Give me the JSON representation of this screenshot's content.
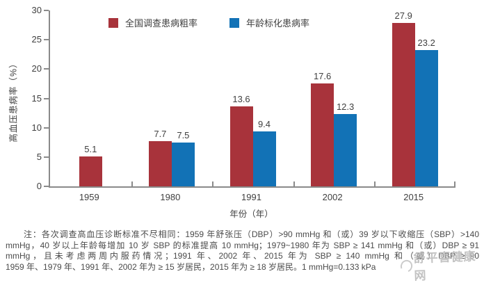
{
  "chart_data": {
    "type": "bar",
    "categories": [
      "1959",
      "1980",
      "1991",
      "2002",
      "2015"
    ],
    "series": [
      {
        "name": "全国调查患病粗率",
        "color": "#A8333B",
        "values": [
          5.1,
          7.7,
          13.6,
          17.6,
          27.9
        ]
      },
      {
        "name": "年龄标化患病率",
        "color": "#1272B6",
        "values": [
          null,
          7.5,
          9.4,
          12.3,
          23.2
        ]
      }
    ],
    "title": "",
    "xlabel": "年份（年）",
    "ylabel": "高血压患病率（%）",
    "ylim": [
      0,
      30
    ],
    "yticks": [
      0,
      5,
      10,
      15,
      20,
      25,
      30
    ],
    "grid": false,
    "legend_position": "top"
  },
  "note": {
    "lines": [
      "注：各次调查高血压诊断标准不尽相同：1959 年舒张压（DBP）>90 mmHg 和（或）39 岁以下收缩压（SBP）>140",
      "mmHg，40 岁以上年龄每增加 10 岁 SBP 的标准提高 10 mmHg；1979~1980 年为 SBP ≥ 141 mmHg 和（或）DBP ≥ 91",
      "mmHg，且未考虑两周内服药情况；1991 年、2002 年、2015 年为 SBP ≥ 140 mmHg 和（或）DBP ≥ 90",
      "1959 年、1979 年、1991 年、2002 年为 ≥ 15 岁居民，2015 年为 ≥ 18 岁居民。1 mmHg=0.133 kPa"
    ]
  },
  "watermark": {
    "text": "舒平喜健康网"
  },
  "colors": {
    "crude_rate_bar": "#A8333B",
    "standardized_rate_bar": "#1272B6",
    "axis": "#8a8a8a",
    "text": "#3f3f3f",
    "watermark": "#bcbcbc"
  }
}
